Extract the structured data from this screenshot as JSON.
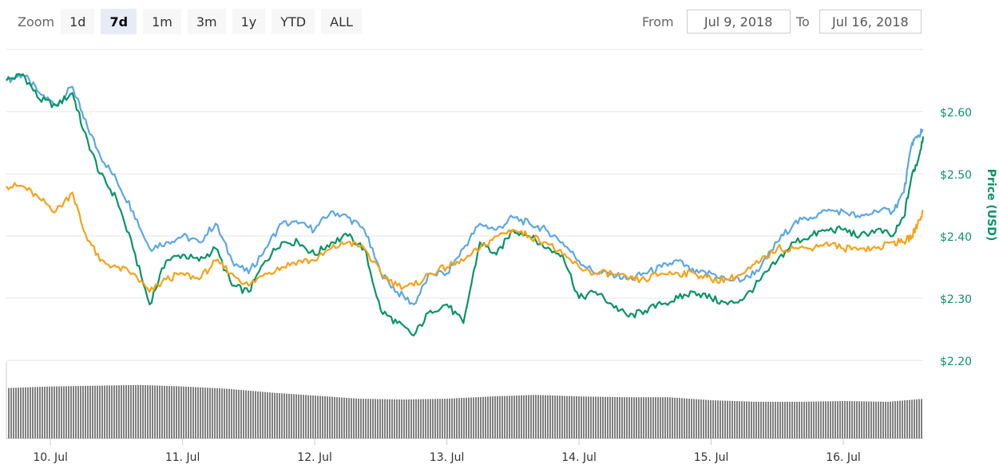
{
  "zoom": {
    "label": "Zoom",
    "buttons": [
      "1d",
      "7d",
      "1m",
      "3m",
      "1y",
      "YTD",
      "ALL"
    ],
    "selected": "7d"
  },
  "range": {
    "from_label": "From",
    "from_value": "Jul 9, 2018",
    "to_label": "To",
    "to_value": "Jul 16, 2018"
  },
  "chart_data": {
    "type": "line",
    "ylabel": "Price (USD)",
    "yticks": [
      "$2.20",
      "$2.30",
      "$2.40",
      "$2.50",
      "$2.60"
    ],
    "ylim": [
      2.2,
      2.7
    ],
    "xticks": [
      "10. Jul",
      "11. Jul",
      "12. Jul",
      "13. Jul",
      "14. Jul",
      "15. Jul",
      "16. Jul"
    ],
    "xlim": [
      "2018-07-09T16:00",
      "2018-07-16T14:30"
    ],
    "grid": true,
    "colors": {
      "blue": "#5aa8e8",
      "green": "#0a9466",
      "orange": "#f7a21b",
      "axis_label": "#0a9466",
      "volume": "#808080"
    },
    "series": [
      {
        "color": "#5aa8e8",
        "x": [
          "2018-07-09T16:00",
          "2018-07-09T19:00",
          "2018-07-09T22:00",
          "2018-07-10T01:00",
          "2018-07-10T04:00",
          "2018-07-10T06:00",
          "2018-07-10T09:00",
          "2018-07-10T12:00",
          "2018-07-10T15:00",
          "2018-07-10T18:00",
          "2018-07-10T21:00",
          "2018-07-11T00:00",
          "2018-07-11T03:00",
          "2018-07-11T06:00",
          "2018-07-11T09:00",
          "2018-07-11T12:00",
          "2018-07-11T15:00",
          "2018-07-11T18:00",
          "2018-07-11T21:00",
          "2018-07-12T00:00",
          "2018-07-12T03:00",
          "2018-07-12T06:00",
          "2018-07-12T09:00",
          "2018-07-12T12:00",
          "2018-07-12T15:00",
          "2018-07-12T18:00",
          "2018-07-12T21:00",
          "2018-07-13T00:00",
          "2018-07-13T03:00",
          "2018-07-13T06:00",
          "2018-07-13T09:00",
          "2018-07-13T12:00",
          "2018-07-13T15:00",
          "2018-07-13T18:00",
          "2018-07-13T21:00",
          "2018-07-14T00:00",
          "2018-07-14T03:00",
          "2018-07-14T06:00",
          "2018-07-14T09:00",
          "2018-07-14T12:00",
          "2018-07-14T15:00",
          "2018-07-14T18:00",
          "2018-07-14T21:00",
          "2018-07-15T00:00",
          "2018-07-15T03:00",
          "2018-07-15T06:00",
          "2018-07-15T09:00",
          "2018-07-15T12:00",
          "2018-07-15T15:00",
          "2018-07-15T18:00",
          "2018-07-15T21:00",
          "2018-07-16T00:00",
          "2018-07-16T03:00",
          "2018-07-16T06:00",
          "2018-07-16T09:00",
          "2018-07-16T11:00",
          "2018-07-16T12:30",
          "2018-07-16T13:30",
          "2018-07-16T14:30"
        ],
        "y": [
          2.65,
          2.66,
          2.63,
          2.61,
          2.64,
          2.59,
          2.53,
          2.49,
          2.44,
          2.38,
          2.39,
          2.4,
          2.39,
          2.42,
          2.36,
          2.34,
          2.38,
          2.42,
          2.42,
          2.41,
          2.44,
          2.43,
          2.41,
          2.34,
          2.31,
          2.29,
          2.34,
          2.34,
          2.38,
          2.42,
          2.41,
          2.43,
          2.42,
          2.41,
          2.39,
          2.36,
          2.34,
          2.34,
          2.33,
          2.34,
          2.35,
          2.36,
          2.34,
          2.34,
          2.33,
          2.33,
          2.35,
          2.39,
          2.42,
          2.43,
          2.44,
          2.44,
          2.43,
          2.44,
          2.44,
          2.47,
          2.55,
          2.56,
          2.57
        ]
      },
      {
        "color": "#0a9466",
        "x": [
          "2018-07-09T16:00",
          "2018-07-09T19:00",
          "2018-07-09T22:00",
          "2018-07-10T01:00",
          "2018-07-10T04:00",
          "2018-07-10T06:00",
          "2018-07-10T09:00",
          "2018-07-10T12:00",
          "2018-07-10T15:00",
          "2018-07-10T18:00",
          "2018-07-10T21:00",
          "2018-07-11T00:00",
          "2018-07-11T03:00",
          "2018-07-11T06:00",
          "2018-07-11T09:00",
          "2018-07-11T12:00",
          "2018-07-11T15:00",
          "2018-07-11T18:00",
          "2018-07-11T21:00",
          "2018-07-12T00:00",
          "2018-07-12T03:00",
          "2018-07-12T06:00",
          "2018-07-12T09:00",
          "2018-07-12T12:00",
          "2018-07-12T15:00",
          "2018-07-12T18:00",
          "2018-07-12T21:00",
          "2018-07-13T00:00",
          "2018-07-13T03:00",
          "2018-07-13T06:00",
          "2018-07-13T09:00",
          "2018-07-13T12:00",
          "2018-07-13T15:00",
          "2018-07-13T18:00",
          "2018-07-13T21:00",
          "2018-07-14T00:00",
          "2018-07-14T03:00",
          "2018-07-14T06:00",
          "2018-07-14T09:00",
          "2018-07-14T12:00",
          "2018-07-14T15:00",
          "2018-07-14T18:00",
          "2018-07-14T21:00",
          "2018-07-15T00:00",
          "2018-07-15T03:00",
          "2018-07-15T06:00",
          "2018-07-15T09:00",
          "2018-07-15T12:00",
          "2018-07-15T15:00",
          "2018-07-15T18:00",
          "2018-07-15T21:00",
          "2018-07-16T00:00",
          "2018-07-16T03:00",
          "2018-07-16T06:00",
          "2018-07-16T09:00",
          "2018-07-16T11:00",
          "2018-07-16T12:30",
          "2018-07-16T13:30",
          "2018-07-16T14:30"
        ],
        "y": [
          2.65,
          2.66,
          2.62,
          2.61,
          2.63,
          2.57,
          2.5,
          2.46,
          2.38,
          2.29,
          2.36,
          2.37,
          2.36,
          2.38,
          2.32,
          2.31,
          2.36,
          2.39,
          2.39,
          2.37,
          2.39,
          2.4,
          2.38,
          2.28,
          2.26,
          2.24,
          2.28,
          2.29,
          2.26,
          2.39,
          2.37,
          2.41,
          2.4,
          2.38,
          2.37,
          2.3,
          2.31,
          2.29,
          2.27,
          2.28,
          2.29,
          2.3,
          2.31,
          2.3,
          2.29,
          2.3,
          2.33,
          2.36,
          2.39,
          2.4,
          2.41,
          2.41,
          2.4,
          2.41,
          2.4,
          2.43,
          2.5,
          2.52,
          2.56
        ]
      },
      {
        "color": "#f7a21b",
        "x": [
          "2018-07-09T16:00",
          "2018-07-09T19:00",
          "2018-07-09T22:00",
          "2018-07-10T01:00",
          "2018-07-10T04:00",
          "2018-07-10T06:00",
          "2018-07-10T09:00",
          "2018-07-10T12:00",
          "2018-07-10T15:00",
          "2018-07-10T18:00",
          "2018-07-10T21:00",
          "2018-07-11T00:00",
          "2018-07-11T03:00",
          "2018-07-11T06:00",
          "2018-07-11T09:00",
          "2018-07-11T12:00",
          "2018-07-11T15:00",
          "2018-07-11T18:00",
          "2018-07-11T21:00",
          "2018-07-12T00:00",
          "2018-07-12T03:00",
          "2018-07-12T06:00",
          "2018-07-12T09:00",
          "2018-07-12T12:00",
          "2018-07-12T15:00",
          "2018-07-12T18:00",
          "2018-07-12T21:00",
          "2018-07-13T00:00",
          "2018-07-13T03:00",
          "2018-07-13T06:00",
          "2018-07-13T09:00",
          "2018-07-13T12:00",
          "2018-07-13T15:00",
          "2018-07-13T18:00",
          "2018-07-13T21:00",
          "2018-07-14T00:00",
          "2018-07-14T03:00",
          "2018-07-14T06:00",
          "2018-07-14T09:00",
          "2018-07-14T12:00",
          "2018-07-14T15:00",
          "2018-07-14T18:00",
          "2018-07-14T21:00",
          "2018-07-15T00:00",
          "2018-07-15T03:00",
          "2018-07-15T06:00",
          "2018-07-15T09:00",
          "2018-07-15T12:00",
          "2018-07-15T15:00",
          "2018-07-15T18:00",
          "2018-07-15T21:00",
          "2018-07-16T00:00",
          "2018-07-16T03:00",
          "2018-07-16T06:00",
          "2018-07-16T09:00",
          "2018-07-16T11:00",
          "2018-07-16T12:30",
          "2018-07-16T13:30",
          "2018-07-16T14:30"
        ],
        "y": [
          2.48,
          2.48,
          2.46,
          2.44,
          2.47,
          2.41,
          2.36,
          2.35,
          2.34,
          2.31,
          2.33,
          2.34,
          2.33,
          2.36,
          2.34,
          2.32,
          2.34,
          2.35,
          2.36,
          2.36,
          2.38,
          2.39,
          2.38,
          2.34,
          2.32,
          2.32,
          2.34,
          2.35,
          2.36,
          2.38,
          2.4,
          2.41,
          2.4,
          2.39,
          2.37,
          2.35,
          2.34,
          2.34,
          2.33,
          2.33,
          2.34,
          2.34,
          2.34,
          2.33,
          2.33,
          2.34,
          2.36,
          2.38,
          2.38,
          2.38,
          2.39,
          2.38,
          2.38,
          2.38,
          2.39,
          2.39,
          2.4,
          2.42,
          2.44
        ]
      }
    ],
    "volume": {
      "x": [
        "2018-07-09T16:00",
        "2018-07-10T00:00",
        "2018-07-10T08:00",
        "2018-07-10T16:00",
        "2018-07-11T00:00",
        "2018-07-11T08:00",
        "2018-07-11T16:00",
        "2018-07-12T00:00",
        "2018-07-12T08:00",
        "2018-07-12T16:00",
        "2018-07-13T00:00",
        "2018-07-13T08:00",
        "2018-07-13T16:00",
        "2018-07-14T00:00",
        "2018-07-14T08:00",
        "2018-07-14T16:00",
        "2018-07-15T00:00",
        "2018-07-15T08:00",
        "2018-07-15T16:00",
        "2018-07-16T00:00",
        "2018-07-16T08:00",
        "2018-07-16T14:30"
      ],
      "y": [
        0.66,
        0.68,
        0.69,
        0.7,
        0.68,
        0.65,
        0.6,
        0.56,
        0.52,
        0.51,
        0.52,
        0.55,
        0.57,
        0.55,
        0.54,
        0.54,
        0.5,
        0.48,
        0.48,
        0.49,
        0.48,
        0.52
      ]
    }
  }
}
